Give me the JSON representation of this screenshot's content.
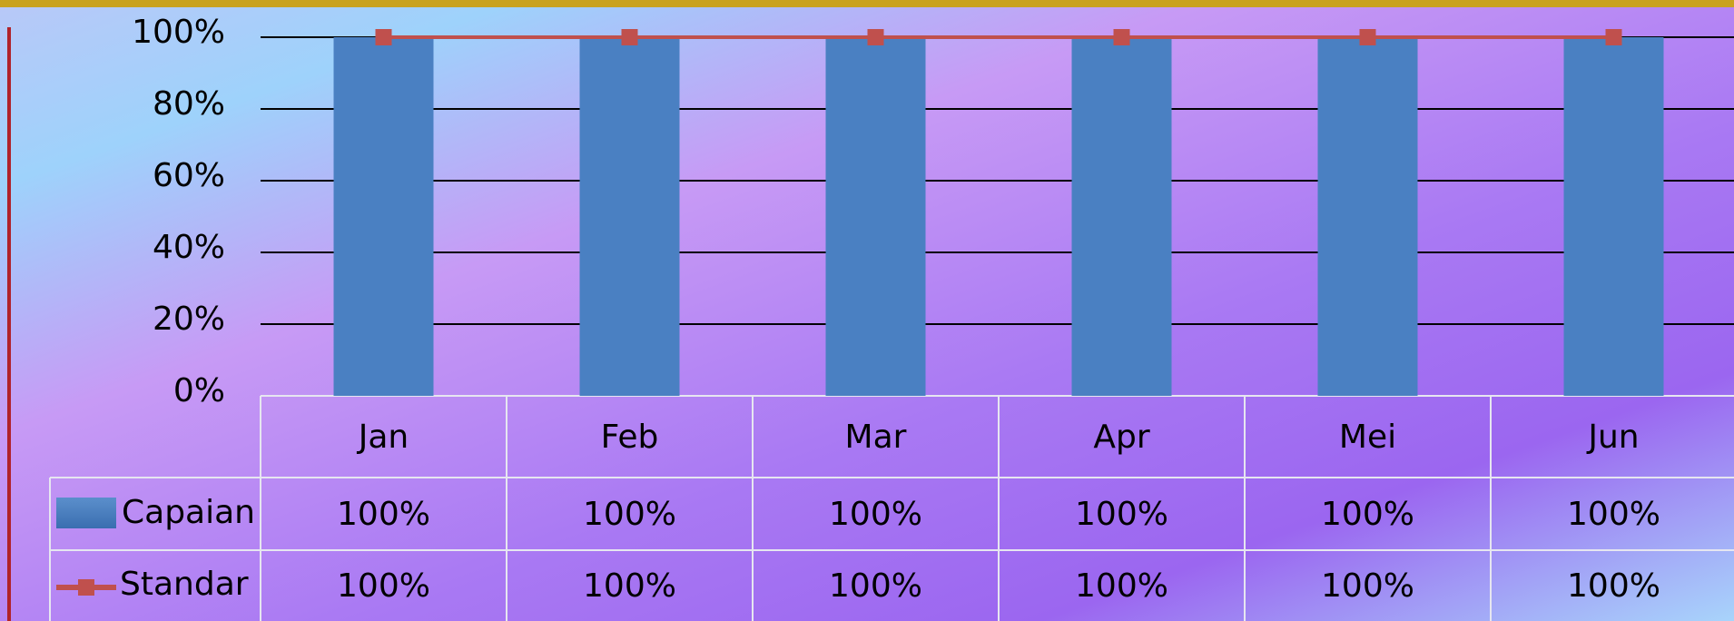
{
  "chart_data": {
    "type": "bar",
    "categories": [
      "Jan",
      "Feb",
      "Mar",
      "Apr",
      "Mei",
      "Jun"
    ],
    "series": [
      {
        "name": "Capaian",
        "type": "bar",
        "color": "#4a80c2",
        "values": [
          100,
          100,
          100,
          100,
          100,
          100
        ],
        "value_labels": [
          "100%",
          "100%",
          "100%",
          "100%",
          "100%",
          "100%"
        ]
      },
      {
        "name": "Standar",
        "type": "line",
        "color": "#c0504d",
        "values": [
          100,
          100,
          100,
          100,
          100,
          100
        ],
        "value_labels": [
          "100%",
          "100%",
          "100%",
          "100%",
          "100%",
          "100%"
        ]
      }
    ],
    "ylim": [
      0,
      100
    ],
    "yticks": [
      {
        "value": 0,
        "label": "0%"
      },
      {
        "value": 20,
        "label": "20%"
      },
      {
        "value": 40,
        "label": "40%"
      },
      {
        "value": 60,
        "label": "60%"
      },
      {
        "value": 80,
        "label": "80%"
      },
      {
        "value": 100,
        "label": "100%"
      }
    ],
    "grid": true
  }
}
